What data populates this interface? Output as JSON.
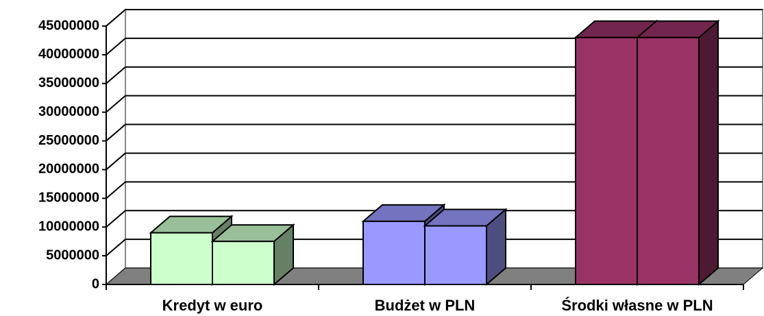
{
  "chart_data": {
    "type": "bar3d",
    "categories": [
      "Kredyt w euro",
      "Budżet w PLN",
      "Środki własne w PLN"
    ],
    "colors": [
      "#ccffcc",
      "#9999ff",
      "#993366"
    ],
    "series": [
      {
        "values": [
          9000000,
          11000000,
          43000000
        ]
      },
      {
        "values": [
          7500000,
          10200000,
          43000000
        ]
      }
    ],
    "ylim": [
      0,
      45000000
    ],
    "yticks": [
      0,
      5000000,
      10000000,
      15000000,
      20000000,
      25000000,
      30000000,
      35000000,
      40000000,
      45000000
    ],
    "grid": true
  }
}
